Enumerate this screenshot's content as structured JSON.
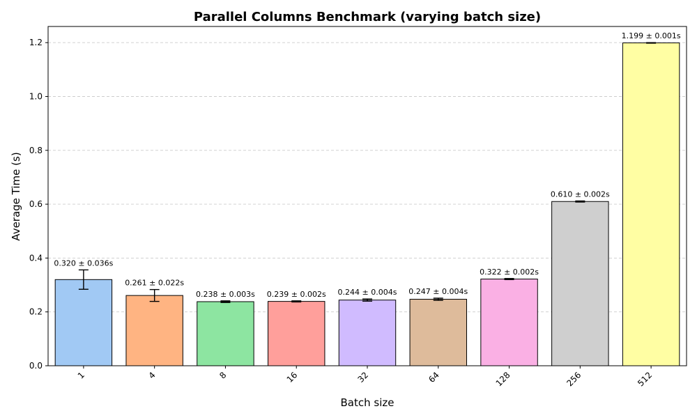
{
  "chart_data": {
    "type": "bar",
    "title": "Parallel Columns Benchmark (varying batch size)",
    "xlabel": "Batch size",
    "ylabel": "Average Time (s)",
    "categories": [
      "1",
      "4",
      "8",
      "16",
      "32",
      "64",
      "128",
      "256",
      "512"
    ],
    "values": [
      0.32,
      0.261,
      0.238,
      0.239,
      0.244,
      0.247,
      0.322,
      0.61,
      1.199
    ],
    "errors": [
      0.036,
      0.022,
      0.003,
      0.002,
      0.004,
      0.004,
      0.002,
      0.002,
      0.001
    ],
    "data_labels": [
      "0.320 ± 0.036s",
      "0.261 ± 0.022s",
      "0.238 ± 0.003s",
      "0.239 ± 0.002s",
      "0.244 ± 0.004s",
      "0.247 ± 0.004s",
      "0.322 ± 0.002s",
      "0.610 ± 0.002s",
      "1.199 ± 0.001s"
    ],
    "colors": [
      "#a1c9f4",
      "#ffb482",
      "#8de5a1",
      "#ff9f9b",
      "#d0bbff",
      "#debb9b",
      "#fab0e4",
      "#cfcfcf",
      "#fffea3"
    ],
    "ylim": [
      0,
      1.26
    ],
    "yticks": [
      0.0,
      0.2,
      0.4,
      0.6,
      0.8,
      1.0,
      1.2
    ],
    "ytick_labels": [
      "0.0",
      "0.2",
      "0.4",
      "0.6",
      "0.8",
      "1.0",
      "1.2"
    ],
    "grid": "y-dashed",
    "legend": "none"
  }
}
